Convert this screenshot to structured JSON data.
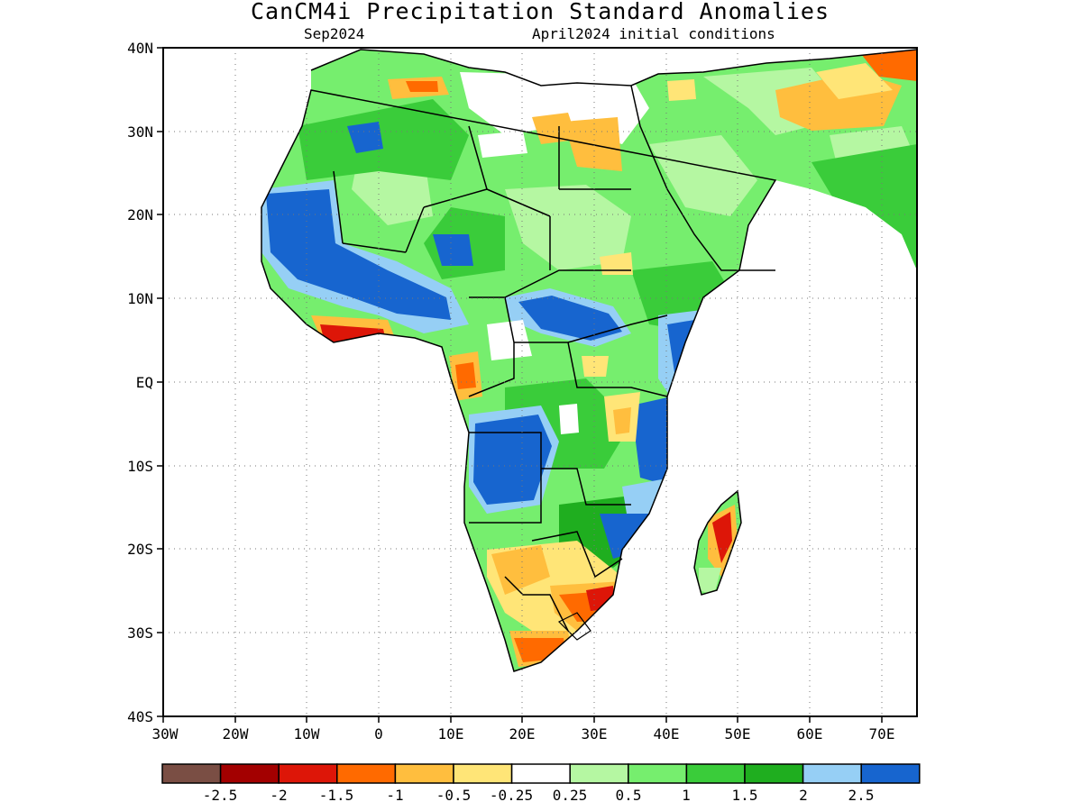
{
  "header": {
    "title": "CanCM4i Precipitation Standard Anomalies",
    "valid_month": "Sep2024",
    "init_conditions": "April2024 initial conditions"
  },
  "map": {
    "lat_labels": [
      "40N",
      "30N",
      "20N",
      "10N",
      "EQ",
      "10S",
      "20S",
      "30S",
      "40S"
    ],
    "lon_labels": [
      "30W",
      "20W",
      "10W",
      "0",
      "10E",
      "20E",
      "30E",
      "40E",
      "50E",
      "60E",
      "70E"
    ],
    "lat_range": [
      -40,
      40
    ],
    "lon_range": [
      -30,
      75
    ],
    "gridlines": "dotted"
  },
  "legend": {
    "colors": [
      "#7a4e44",
      "#a30000",
      "#dd1608",
      "#ff6a00",
      "#ffbe3e",
      "#ffe577",
      "#ffffff",
      "#b5f7a2",
      "#76ee6e",
      "#3acc3a",
      "#1fae1f",
      "#96cff5",
      "#1765cf"
    ],
    "labels": [
      "-2.5",
      "-2",
      "-1.5",
      "-1",
      "-0.5",
      "-0.25",
      "0.25",
      "0.5",
      "1",
      "1.5",
      "2",
      "2.5"
    ]
  }
}
